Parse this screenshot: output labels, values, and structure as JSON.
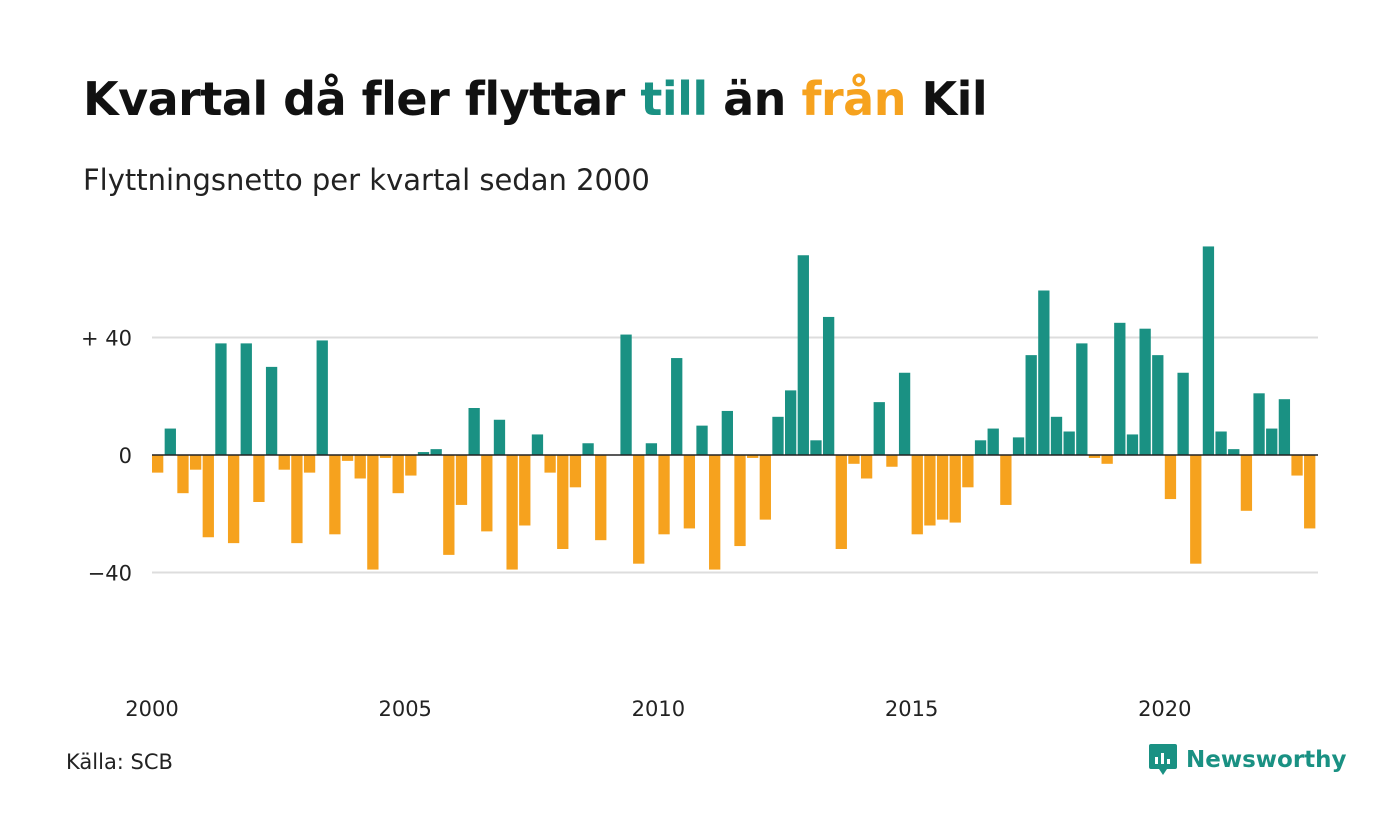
{
  "title": {
    "part1": "Kvartal då fler flyttar ",
    "till": "till",
    "part2": " än ",
    "fran": "från",
    "part3": " Kil"
  },
  "subtitle": "Flyttningsnetto per kvartal sedan 2000",
  "source": "Källa: SCB",
  "brand": {
    "name": "Newsworthy",
    "icon": "newsworthy-logo-icon"
  },
  "colors": {
    "positive": "#1a9183",
    "negative": "#f6a21e",
    "grid": "#dddddd",
    "zero": "#222222"
  },
  "chart_data": {
    "type": "bar",
    "title": "Kvartal då fler flyttar till än från Kil",
    "subtitle": "Flyttningsnetto per kvartal sedan 2000",
    "ylim": [
      -74,
      74
    ],
    "yticks": [
      40,
      0,
      -40
    ],
    "ytick_labels": [
      "+ 40",
      "0",
      "−40"
    ],
    "x_start": 2000,
    "quarters_per_year": 4,
    "xticks": [
      2000,
      2005,
      2010,
      2015,
      2020
    ],
    "xtick_labels": [
      "2000",
      "2005",
      "2010",
      "2015",
      "2020"
    ],
    "grid": true,
    "values": [
      -6,
      9,
      -13,
      -5,
      -28,
      38,
      -30,
      38,
      -16,
      30,
      -5,
      -30,
      -6,
      39,
      -27,
      -2,
      -8,
      -39,
      -1,
      -13,
      -7,
      1,
      2,
      -34,
      -17,
      16,
      -26,
      12,
      -39,
      -24,
      7,
      -6,
      -32,
      -11,
      4,
      -29,
      0,
      41,
      -37,
      4,
      -27,
      33,
      -25,
      10,
      -39,
      15,
      -31,
      -1,
      -22,
      13,
      22,
      68,
      5,
      47,
      -32,
      -3,
      -8,
      18,
      -4,
      28,
      -27,
      -24,
      -22,
      -23,
      -11,
      5,
      9,
      -17,
      6,
      34,
      56,
      13,
      8,
      38,
      -1,
      -3,
      45,
      7,
      43,
      34,
      -15,
      28,
      -37,
      71,
      8,
      2,
      -19,
      21,
      9,
      19,
      -7,
      -25
    ]
  }
}
